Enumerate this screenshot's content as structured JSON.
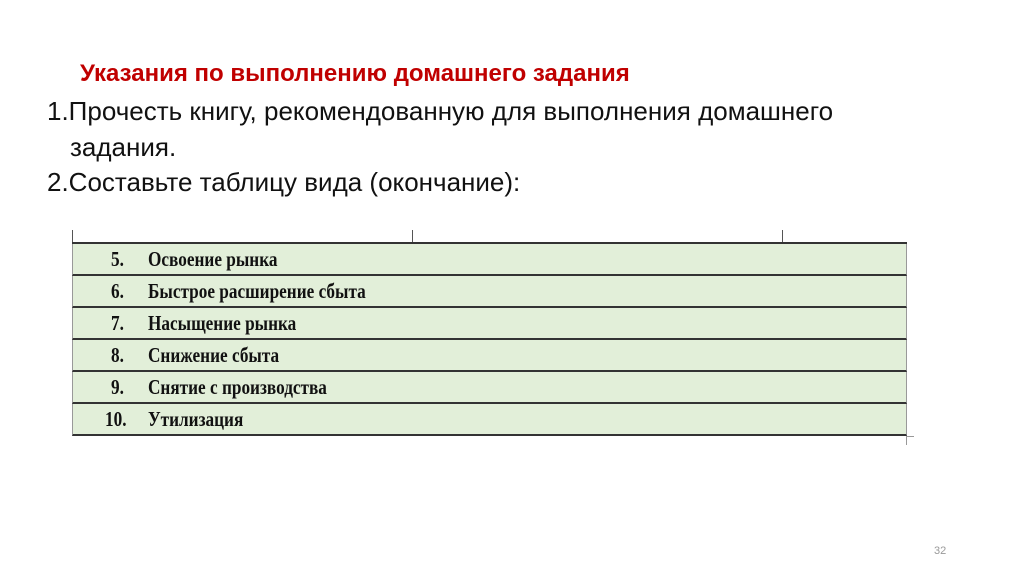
{
  "title": "Указания по выполнению домашнего задания",
  "instructions": [
    "1.Прочесть книгу, рекомендованную для выполнения домашнего",
    "задания.",
    "2.Составьте таблицу вида (окончание):"
  ],
  "table": {
    "rows": [
      {
        "num": "5.",
        "text": "Освоение рынка"
      },
      {
        "num": "6.",
        "text": "Быстрое расширение сбыта"
      },
      {
        "num": "7.",
        "text": "Насыщение рынка"
      },
      {
        "num": "8.",
        "text": "Снижение сбыта"
      },
      {
        "num": "9.",
        "text": "Снятие с производства"
      },
      {
        "num": "10.",
        "text": "Утилизация"
      }
    ],
    "row_color": "#e2efd9"
  },
  "page_number": "32",
  "title_color": "#c00000"
}
